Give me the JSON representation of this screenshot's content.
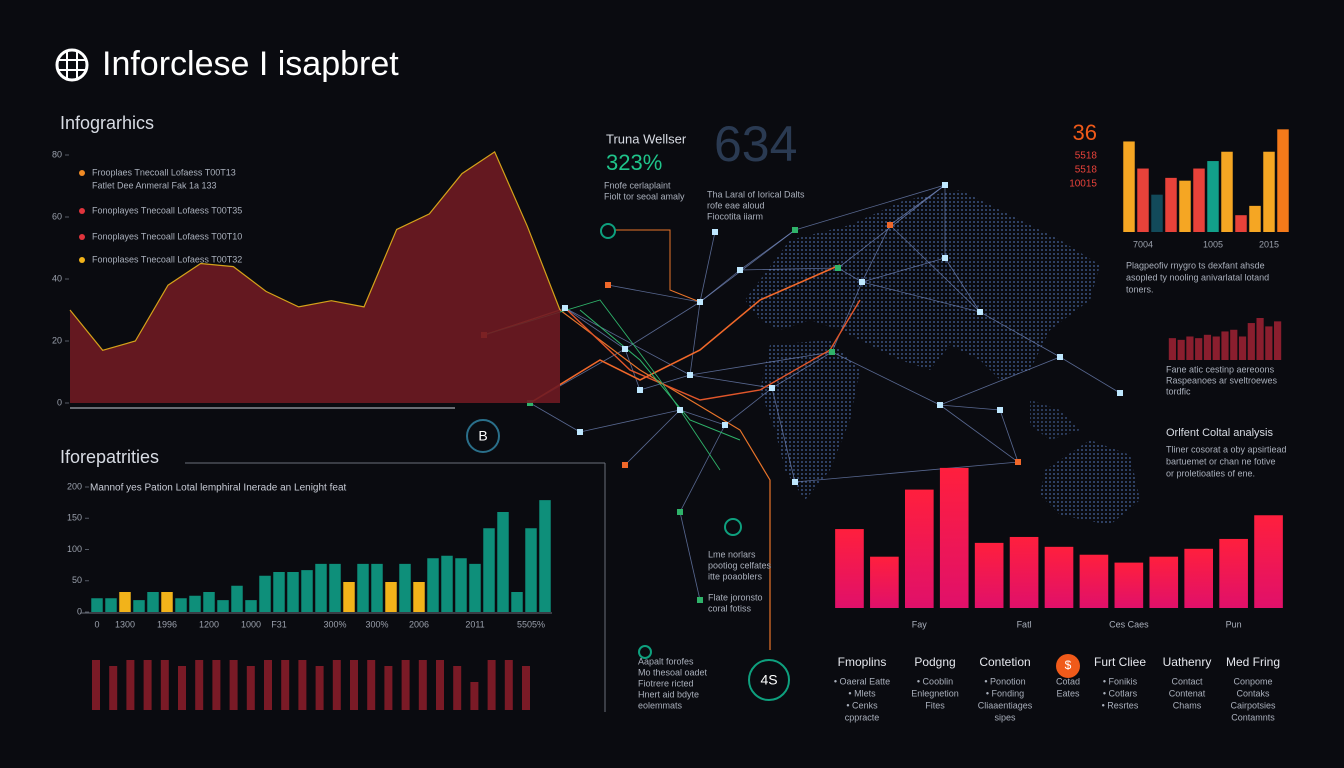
{
  "header": {
    "title": "Inforclese I isapbret"
  },
  "center": {
    "label": "Truna Wellser",
    "percent": "323%",
    "big_number": "634",
    "desc_left": [
      "Fnofe cerlaplaint",
      "Fiolt tor seoal amaly"
    ],
    "desc_right": [
      "Tha Laral of Iorical Dalts",
      "rofe eae aloud",
      "Fiocotita iiarm"
    ],
    "node_a": "B",
    "node_b": "4S",
    "notes_1": [
      "Lme norlars",
      "pootiog celfates",
      "itte poaoblers"
    ],
    "notes_2": [
      "Flate joronsto",
      "coral fotiss"
    ],
    "notes_3": [
      "Aapalt forofes",
      "Mo thesoal oadet",
      "Fiotrere ricted",
      "Hnert aid bdyte",
      "eolemmats"
    ]
  },
  "stats": [
    "36",
    "5518",
    "5518",
    "10015"
  ],
  "right_texts": {
    "note_1": [
      "Plagpeofiv rnygro ts dexfant ahsde",
      "asopled ty nooling anivarlatal lotand",
      "toners."
    ],
    "note_2": [
      "Fane atic cestinp aereoons",
      "Raspeanoes ar sveltroewes",
      "tordfic"
    ],
    "analysis_title": "Orlfent Coltal analysis",
    "analysis_text": [
      "Tliner cosorat a oby apsirtiead",
      "bartuemet or chan ne fotive",
      "or proletioaties of ene."
    ]
  },
  "chart_data": [
    {
      "type": "area",
      "title": "Infograrhics",
      "color": "#6e1a22",
      "line_color": "#d4a21a",
      "values": [
        30,
        17,
        20,
        38,
        45,
        44,
        36,
        31,
        33,
        31,
        56,
        61,
        74,
        81,
        57,
        30
      ],
      "ylim": [
        0,
        80
      ],
      "yticks": [
        0,
        20,
        40,
        60,
        80
      ],
      "legend": [
        {
          "name": "Frooplaes Tnecoall Lofaess T00T13",
          "sub": "Fatlet Dee Anmeral Fak 1a 133",
          "color": "#f08a24"
        },
        {
          "name": "Fonoplayes Tnecoall Lofaess T00T35",
          "color": "#e0343c"
        },
        {
          "name": "Fonoplayes Tnecoall Lofaess T00T10",
          "color": "#e0343c"
        },
        {
          "name": "Fonoplases Tnecoall Lofaess T00T32",
          "color": "#f2b31a"
        }
      ]
    },
    {
      "type": "bar",
      "title": "Iforepatrities",
      "subtitle": "Mannof yes Pation Lotal lemphiral Inerade an Lenight feat",
      "categories": [
        "0",
        null,
        "1300",
        null,
        null,
        "1996",
        null,
        null,
        "1200",
        null,
        null,
        "1000",
        null,
        "F31",
        null,
        null,
        null,
        "300%",
        null,
        null,
        "300%",
        null,
        null,
        "2006",
        null,
        null,
        null,
        "2011",
        null,
        null,
        null,
        "5505%",
        null
      ],
      "values": [
        22,
        22,
        32,
        19,
        32,
        32,
        22,
        26,
        32,
        19,
        42,
        19,
        58,
        64,
        64,
        67,
        77,
        77,
        48,
        77,
        77,
        48,
        77,
        48,
        86,
        90,
        86,
        77,
        134,
        160,
        32,
        134,
        179
      ],
      "colors": [
        "#0e8f7a",
        "#0e8f7a",
        "#f2b31a",
        "#0e8f7a",
        "#0e8f7a",
        "#f2b31a",
        "#0e8f7a",
        "#0e8f7a",
        "#0e8f7a",
        "#0e8f7a",
        "#0e8f7a",
        "#0e8f7a",
        "#0e8f7a",
        "#0e8f7a",
        "#0e8f7a",
        "#0e8f7a",
        "#0e8f7a",
        "#0e8f7a",
        "#f2b31a",
        "#0e8f7a",
        "#0e8f7a",
        "#f2b31a",
        "#0e8f7a",
        "#f2b31a",
        "#0e8f7a",
        "#0e8f7a",
        "#0e8f7a",
        "#0e8f7a",
        "#0e8f7a",
        "#0e8f7a",
        "#0e8f7a",
        "#0e8f7a",
        "#0e8f7a"
      ],
      "ylim": [
        0,
        200
      ],
      "yticks": [
        0,
        50,
        100,
        150,
        200
      ]
    },
    {
      "type": "bar",
      "categories": [
        null,
        "7004",
        null,
        null,
        null,
        null,
        "1005",
        null,
        null,
        null,
        "2015",
        null
      ],
      "values": [
        97,
        68,
        40,
        58,
        55,
        68,
        76,
        86,
        18,
        28,
        86,
        110
      ],
      "colors": [
        "#f5a623",
        "#e8423a",
        "#124a5a",
        "#e8423a",
        "#f5a623",
        "#e8423a",
        "#12a08a",
        "#f5a623",
        "#e8423a",
        "#f5a623",
        "#f5a623",
        "#f57a1a"
      ],
      "ylim": [
        0,
        120
      ]
    },
    {
      "type": "bar",
      "values": [
        26,
        24,
        28,
        26,
        30,
        28,
        34,
        36,
        28,
        44,
        50,
        40,
        46
      ],
      "color": "#8a1e2e",
      "ylim": [
        0,
        50
      ]
    },
    {
      "type": "bar",
      "categories": [
        null,
        null,
        "Fay",
        null,
        null,
        "Fatl",
        null,
        null,
        "Ces Caes",
        null,
        null,
        "Pun",
        null
      ],
      "values": [
        80,
        52,
        120,
        142,
        66,
        72,
        62,
        54,
        46,
        52,
        60,
        70,
        94
      ],
      "color": "#ff1f3d",
      "color2": "#e0106a",
      "ylim": [
        0,
        150
      ]
    }
  ],
  "features": [
    {
      "title": "Fmoplins",
      "lines": [
        "• Oaeral Eatte",
        "• Mlets",
        "• Cenks",
        "cppracte"
      ]
    },
    {
      "title": "Podgng",
      "lines": [
        "• Cooblin",
        "Enlegnetion",
        "Fites"
      ]
    },
    {
      "title": "Contetion",
      "lines": [
        "• Ponotion",
        "• Fonding",
        "Cliaaentiages",
        "sipes"
      ]
    },
    {
      "title": "$",
      "lines": [
        "Cotad",
        "Eates"
      ]
    },
    {
      "title": "Furt Cliee",
      "lines": [
        "• Fonikis",
        "• Cotlars",
        "• Resrtes"
      ]
    },
    {
      "title": "Uathenry",
      "lines": [
        "Contact",
        "Contenat",
        "Chams"
      ]
    },
    {
      "title": "Med Fring",
      "lines": [
        "Conpome",
        "Contaks",
        "Cairpotsies",
        "Contamnts"
      ]
    }
  ]
}
